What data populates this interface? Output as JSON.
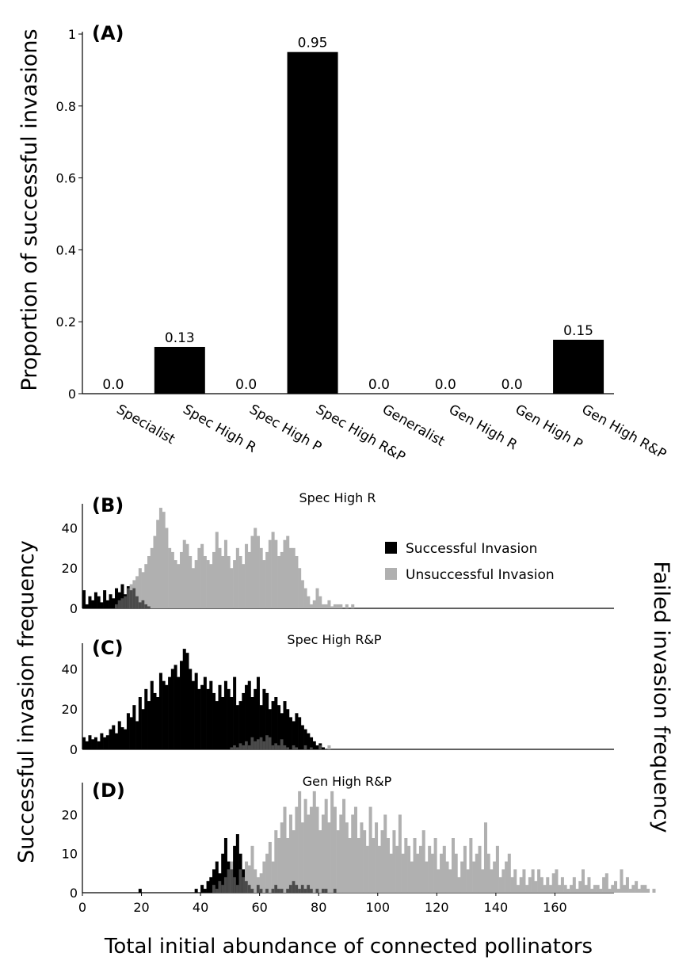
{
  "chart_data": [
    {
      "panel": "(A)",
      "type": "bar",
      "categories": [
        "Specialist",
        "Spec High R",
        "Spec High P",
        "Spec High R&P",
        "Generalist",
        "Gen High R",
        "Gen High P",
        "Gen High R&P"
      ],
      "values": [
        0.0,
        0.13,
        0.0,
        0.95,
        0.0,
        0.0,
        0.0,
        0.15
      ],
      "value_labels": [
        "0.0",
        "0.13",
        "0.0",
        "0.95",
        "0.0",
        "0.0",
        "0.0",
        "0.15"
      ],
      "ylabel": "Proportion of successful invasions",
      "ylim": [
        0,
        1
      ],
      "yticks": [
        "0",
        "0.2",
        "0.4",
        "0.6",
        "0.8",
        "1"
      ],
      "color": "#000000"
    },
    {
      "panel": "(B)",
      "type": "bar",
      "title": "Spec High R",
      "xlim": [
        0,
        180
      ],
      "ylim": [
        0,
        52
      ],
      "yticks": [
        "0",
        "20",
        "40"
      ],
      "legend_position": "top-right",
      "series": [
        {
          "name": "Successful Invasion",
          "color": "#000000",
          "x_start": 0,
          "values": [
            9,
            2,
            6,
            4,
            8,
            6,
            3,
            9,
            4,
            7,
            5,
            10,
            8,
            12,
            7,
            11,
            9,
            10,
            6,
            3,
            4,
            2,
            1,
            0,
            0,
            0,
            0,
            0,
            0,
            0,
            0,
            0,
            0,
            0,
            0,
            0,
            0,
            0,
            0,
            0
          ]
        },
        {
          "name": "Unsuccessful Invasion",
          "color": "#b0b0b0",
          "x_start": 0,
          "values": [
            0,
            0,
            0,
            0,
            0,
            0,
            0,
            0,
            0,
            0,
            0,
            2,
            4,
            5,
            6,
            10,
            12,
            14,
            16,
            20,
            18,
            22,
            26,
            30,
            36,
            44,
            50,
            48,
            40,
            30,
            28,
            24,
            22,
            28,
            34,
            32,
            26,
            20,
            24,
            30,
            32,
            26,
            24,
            22,
            28,
            38,
            30,
            26,
            34,
            26,
            20,
            24,
            30,
            26,
            22,
            32,
            28,
            36,
            40,
            36,
            30,
            24,
            28,
            34,
            38,
            34,
            26,
            28,
            34,
            36,
            30,
            30,
            26,
            20,
            14,
            10,
            6,
            2,
            4,
            10,
            6,
            2,
            2,
            4,
            1,
            2,
            2,
            2,
            0,
            2,
            0,
            2,
            0
          ]
        }
      ]
    },
    {
      "panel": "(C)",
      "type": "bar",
      "title": "Spec High R&P",
      "xlim": [
        0,
        180
      ],
      "ylim": [
        0,
        52
      ],
      "yticks": [
        "0",
        "20",
        "40"
      ],
      "series": [
        {
          "name": "Successful Invasion",
          "color": "#000000",
          "x_start": 0,
          "values": [
            6,
            4,
            7,
            5,
            6,
            4,
            8,
            6,
            7,
            10,
            12,
            8,
            14,
            11,
            10,
            18,
            16,
            22,
            14,
            26,
            20,
            30,
            24,
            34,
            28,
            26,
            38,
            34,
            32,
            36,
            40,
            42,
            36,
            44,
            50,
            48,
            40,
            34,
            38,
            30,
            32,
            36,
            30,
            34,
            28,
            24,
            32,
            26,
            34,
            30,
            26,
            36,
            22,
            24,
            28,
            32,
            34,
            26,
            30,
            36,
            22,
            30,
            28,
            20,
            24,
            26,
            22,
            18,
            24,
            20,
            16,
            14,
            18,
            16,
            12,
            10,
            8,
            6,
            4,
            2,
            3,
            1,
            0
          ]
        },
        {
          "name": "Unsuccessful Invasion",
          "color": "#b0b0b0",
          "x_start": 50,
          "values": [
            1,
            2,
            1,
            3,
            2,
            4,
            2,
            6,
            4,
            5,
            6,
            4,
            7,
            6,
            2,
            3,
            2,
            5,
            2,
            1,
            0,
            2,
            1,
            0,
            0,
            2,
            0,
            1,
            0,
            0,
            2,
            0,
            0,
            2,
            0
          ]
        }
      ]
    },
    {
      "panel": "(D)",
      "type": "bar",
      "title": "Gen High R&P",
      "xlabel": "Total initial abundance of connected pollinators",
      "xlim": [
        0,
        180
      ],
      "xticks": [
        "0",
        "20",
        "40",
        "60",
        "80",
        "100",
        "120",
        "140",
        "160"
      ],
      "ylim": [
        0,
        28
      ],
      "yticks": [
        "0",
        "10",
        "20"
      ],
      "y_left_label": "Successful invasion frequency",
      "y_right_label": "Failed invasion frequency",
      "series": [
        {
          "name": "Successful Invasion",
          "color": "#000000",
          "x_start": 17,
          "values": [
            0,
            0,
            1,
            0,
            0,
            0,
            0,
            0,
            0,
            0,
            0,
            0,
            0,
            0,
            0,
            0,
            0,
            0,
            0,
            0,
            0,
            1,
            0,
            2,
            1,
            3,
            4,
            6,
            8,
            5,
            10,
            14,
            8,
            6,
            12,
            15,
            10,
            6,
            3,
            2,
            1,
            0,
            2,
            1,
            0,
            1,
            0,
            1,
            2,
            1,
            1,
            0,
            1,
            2,
            3,
            2,
            1,
            2,
            1,
            2,
            1,
            0,
            1,
            0,
            1,
            1,
            0,
            0,
            1,
            0
          ]
        },
        {
          "name": "Unsuccessful Invasion",
          "color": "#b0b0b0",
          "x_start": 44,
          "values": [
            2,
            1,
            3,
            2,
            4,
            6,
            8,
            4,
            2,
            6,
            4,
            8,
            7,
            12,
            6,
            4,
            5,
            8,
            10,
            13,
            8,
            16,
            14,
            18,
            22,
            14,
            20,
            16,
            22,
            26,
            18,
            24,
            20,
            22,
            26,
            22,
            16,
            20,
            24,
            18,
            26,
            22,
            16,
            20,
            24,
            18,
            14,
            20,
            22,
            14,
            18,
            16,
            12,
            22,
            14,
            18,
            12,
            16,
            20,
            14,
            10,
            16,
            12,
            20,
            10,
            14,
            12,
            8,
            14,
            10,
            12,
            16,
            8,
            12,
            10,
            14,
            6,
            10,
            12,
            8,
            6,
            14,
            10,
            4,
            8,
            12,
            6,
            14,
            8,
            10,
            12,
            6,
            18,
            10,
            6,
            8,
            12,
            4,
            6,
            8,
            10,
            4,
            6,
            2,
            4,
            6,
            2,
            4,
            6,
            3,
            6,
            4,
            2,
            4,
            2,
            5,
            6,
            2,
            4,
            2,
            1,
            2,
            4,
            1,
            3,
            6,
            2,
            4,
            1,
            2,
            2,
            1,
            4,
            5,
            1,
            2,
            3,
            1,
            6,
            2,
            4,
            1,
            2,
            3,
            1,
            2,
            2,
            1,
            0,
            1
          ]
        }
      ]
    }
  ]
}
